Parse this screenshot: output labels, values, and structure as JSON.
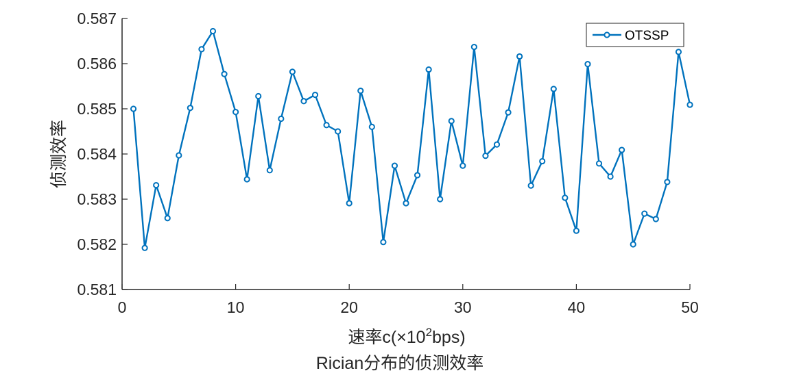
{
  "chart_data": {
    "type": "line",
    "title": "Rician分布的侦测效率",
    "xlabel_prefix": "速率c(×10",
    "xlabel_sup": "2",
    "xlabel_suffix": "bps)",
    "ylabel": "侦测效率",
    "xlim": [
      0,
      50
    ],
    "ylim": [
      0.581,
      0.587
    ],
    "xticks": [
      0,
      10,
      20,
      30,
      40,
      50
    ],
    "xtick_labels": [
      "0",
      "10",
      "20",
      "30",
      "40",
      "50"
    ],
    "yticks": [
      0.581,
      0.582,
      0.583,
      0.584,
      0.585,
      0.586,
      0.587
    ],
    "ytick_labels": [
      "0.581",
      "0.582",
      "0.583",
      "0.584",
      "0.585",
      "0.586",
      "0.587"
    ],
    "grid": false,
    "legend_position": "top-right",
    "series": [
      {
        "name": "OTSSP",
        "color": "#0072BD",
        "marker": "circle",
        "x": [
          1,
          2,
          3,
          4,
          5,
          6,
          7,
          8,
          9,
          10,
          11,
          12,
          13,
          14,
          15,
          16,
          17,
          18,
          19,
          20,
          21,
          22,
          23,
          24,
          25,
          26,
          27,
          28,
          29,
          30,
          31,
          32,
          33,
          34,
          35,
          36,
          37,
          38,
          39,
          40,
          41,
          42,
          43,
          44,
          45,
          46,
          47,
          48,
          49,
          50
        ],
        "y": [
          0.585,
          0.58192,
          0.58331,
          0.58258,
          0.58397,
          0.58502,
          0.58632,
          0.58672,
          0.58577,
          0.58493,
          0.58344,
          0.58528,
          0.58364,
          0.58478,
          0.58582,
          0.58517,
          0.58531,
          0.58464,
          0.5845,
          0.58291,
          0.5854,
          0.5846,
          0.58205,
          0.58374,
          0.58291,
          0.58353,
          0.58587,
          0.583,
          0.58473,
          0.58374,
          0.58637,
          0.58396,
          0.58421,
          0.58492,
          0.58616,
          0.5833,
          0.58384,
          0.58544,
          0.58303,
          0.5823,
          0.58599,
          0.58379,
          0.5835,
          0.58409,
          0.582,
          0.58268,
          0.58256,
          0.58338,
          0.58626,
          0.58509
        ]
      }
    ]
  }
}
